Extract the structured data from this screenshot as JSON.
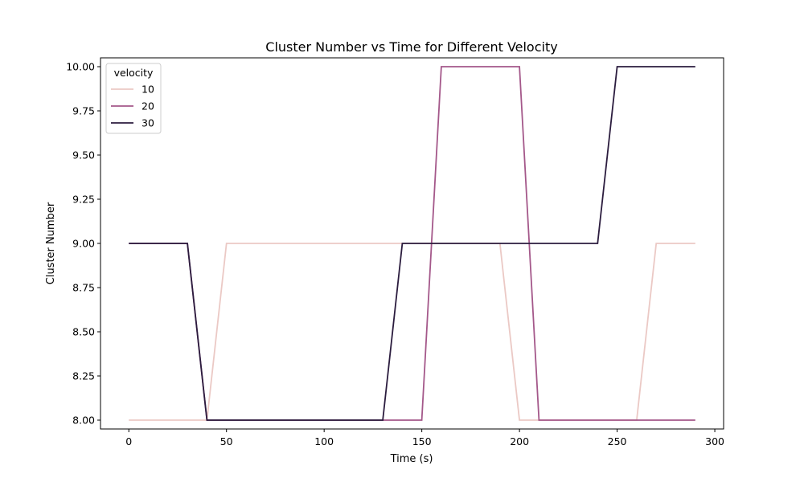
{
  "chart_data": {
    "type": "line",
    "title": "Cluster Number vs Time for Different Velocity",
    "xlabel": "Time (s)",
    "ylabel": "Cluster Number",
    "xlim": [
      -14.5,
      304.5
    ],
    "ylim": [
      7.95,
      10.05
    ],
    "xticks": [
      0,
      50,
      100,
      150,
      200,
      250,
      300
    ],
    "xtick_labels": [
      "0",
      "50",
      "100",
      "150",
      "200",
      "250",
      "300"
    ],
    "yticks": [
      8.0,
      8.25,
      8.5,
      8.75,
      9.0,
      9.25,
      9.5,
      9.75,
      10.0
    ],
    "ytick_labels": [
      "8.00",
      "8.25",
      "8.50",
      "8.75",
      "9.00",
      "9.25",
      "9.50",
      "9.75",
      "10.00"
    ],
    "grid": false,
    "legend": {
      "title": "velocity",
      "placement": "top-left"
    },
    "x": [
      0,
      10,
      20,
      30,
      40,
      50,
      60,
      70,
      80,
      90,
      100,
      110,
      120,
      130,
      140,
      150,
      160,
      170,
      180,
      190,
      200,
      210,
      220,
      230,
      240,
      250,
      260,
      270,
      280,
      290
    ],
    "series": [
      {
        "name": "10",
        "color": "#ebc9c5",
        "values": [
          8,
          8,
          8,
          8,
          8,
          9,
          9,
          9,
          9,
          9,
          9,
          9,
          9,
          9,
          9,
          9,
          9,
          9,
          9,
          9,
          8,
          8,
          8,
          8,
          8,
          8,
          8,
          9,
          9,
          9
        ]
      },
      {
        "name": "20",
        "color": "#a4588a",
        "values": [
          9,
          9,
          9,
          9,
          8,
          8,
          8,
          8,
          8,
          8,
          8,
          8,
          8,
          8,
          8,
          8,
          10,
          10,
          10,
          10,
          10,
          8,
          8,
          8,
          8,
          8,
          8,
          8,
          8,
          8
        ]
      },
      {
        "name": "30",
        "color": "#2b1c3e",
        "values": [
          9,
          9,
          9,
          9,
          8,
          8,
          8,
          8,
          8,
          8,
          8,
          8,
          8,
          8,
          9,
          9,
          9,
          9,
          9,
          9,
          9,
          9,
          9,
          9,
          9,
          10,
          10,
          10,
          10,
          10
        ]
      }
    ]
  }
}
